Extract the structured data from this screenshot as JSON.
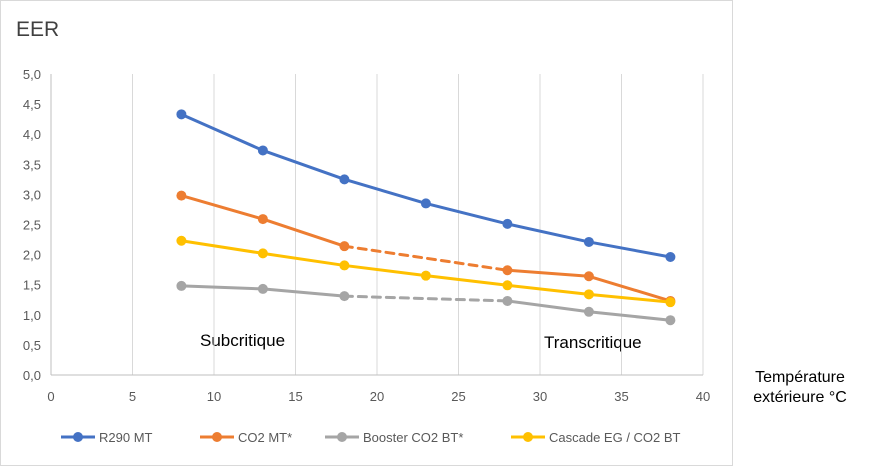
{
  "chart_data": {
    "type": "line",
    "ylabel": "EER",
    "xlabel_lines": [
      "Température",
      "extérieure °C"
    ],
    "xlim": [
      0,
      40
    ],
    "ylim": [
      0,
      5
    ],
    "xticks": [
      0,
      5,
      10,
      15,
      20,
      25,
      30,
      35,
      40
    ],
    "xtick_labels": [
      "0",
      "5",
      "10",
      "15",
      "20",
      "25",
      "30",
      "35",
      "40"
    ],
    "yticks": [
      0,
      0.5,
      1,
      1.5,
      2,
      2.5,
      3,
      3.5,
      4,
      4.5,
      5
    ],
    "ytick_labels": [
      "0,0",
      "0,5",
      "1,0",
      "1,5",
      "2,0",
      "2,5",
      "3,0",
      "3,5",
      "4,0",
      "4,5",
      "5,0"
    ],
    "grid": "vertical",
    "legend_position": "bottom",
    "annotations": [
      "Subcritique",
      "Transcritique"
    ],
    "series": [
      {
        "name": "R290 MT",
        "color": "#4472c4",
        "x": [
          8,
          13,
          18,
          23,
          28,
          33,
          38
        ],
        "y": [
          4.33,
          3.73,
          3.25,
          2.85,
          2.51,
          2.21,
          1.96
        ],
        "dashed_segments": []
      },
      {
        "name": "CO2 MT*",
        "color": "#ed7d31",
        "x": [
          8,
          13,
          18,
          28,
          33,
          38
        ],
        "y": [
          2.98,
          2.59,
          2.14,
          1.74,
          1.64,
          1.23
        ],
        "dashed_segments": [
          [
            18,
            28
          ]
        ]
      },
      {
        "name": "Booster CO2 BT*",
        "color": "#a5a5a5",
        "x": [
          8,
          13,
          18,
          28,
          33,
          38
        ],
        "y": [
          1.48,
          1.43,
          1.31,
          1.23,
          1.05,
          0.91
        ],
        "dashed_segments": [
          [
            18,
            28
          ]
        ]
      },
      {
        "name": "Cascade EG / CO2 BT",
        "color": "#ffc000",
        "x": [
          8,
          13,
          18,
          23,
          28,
          33,
          38
        ],
        "y": [
          2.23,
          2.02,
          1.82,
          1.65,
          1.49,
          1.34,
          1.21
        ],
        "dashed_segments": []
      }
    ]
  }
}
